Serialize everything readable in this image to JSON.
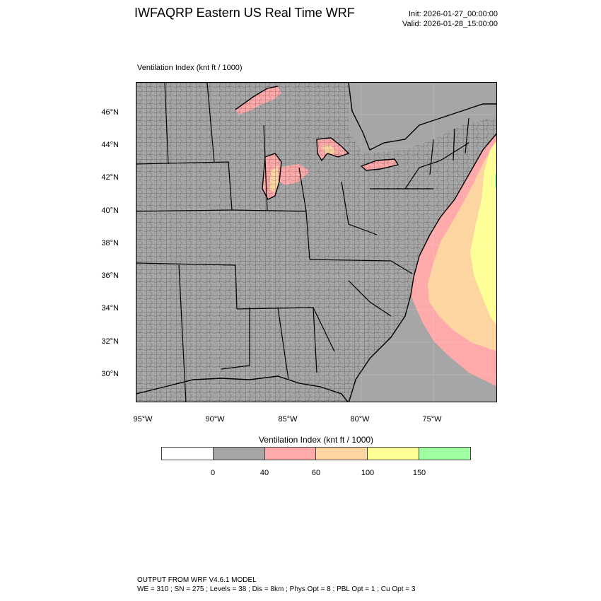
{
  "header": {
    "title": "IWFAQRP Eastern US Real Time WRF",
    "init": "Init: 2026-01-27_00:00:00",
    "valid": "Valid: 2026-01-28_15:00:00"
  },
  "panel": {
    "label": "Ventilation Index   (knt ft / 1000)"
  },
  "map": {
    "lat_labels": [
      "46°N",
      "44°N",
      "42°N",
      "40°N",
      "38°N",
      "36°N",
      "34°N",
      "32°N",
      "30°N"
    ],
    "lon_labels": [
      "95°W",
      "90°W",
      "85°W",
      "80°W",
      "75°W"
    ],
    "colors": {
      "land": "#a6a6a6",
      "pink": "#ffaaaa",
      "peach": "#fdd5a0",
      "yellow": "#ffff99",
      "green": "#a0ffa0"
    }
  },
  "colorbar": {
    "title": "Ventilation Index  (knt ft / 1000)",
    "colors": [
      "#ffffff",
      "#a6a6a6",
      "#ffaaaa",
      "#fdd5a0",
      "#ffff99",
      "#a0ffa0"
    ],
    "labels": [
      "0",
      "40",
      "60",
      "100",
      "150"
    ]
  },
  "footer": {
    "line1": "OUTPUT FROM WRF V4.6.1 MODEL",
    "line2": "WE = 310 ; SN = 275 ; Levels = 38 ; Dis = 8km ; Phys Opt = 8 ; PBL Opt = 1 ; Cu Opt = 3"
  }
}
